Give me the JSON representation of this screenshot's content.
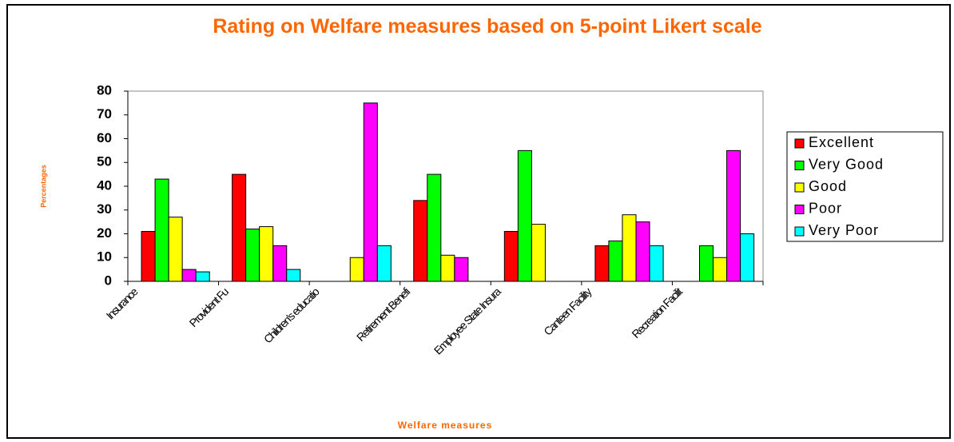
{
  "chart_data": {
    "type": "bar",
    "title": "Rating on Welfare measures based on 5-point Likert scale",
    "x_label": "Welfare measures",
    "y_label": "Percentages",
    "categories": [
      "Insurance",
      "Provident Fu",
      "Children's educatio",
      "Retirement Benefi",
      "Employee State Insura",
      "Canteen Facility",
      "Recreation Facilit"
    ],
    "series": [
      {
        "name": "Excellent",
        "color": "#ff0000",
        "values": [
          21,
          45,
          0,
          34,
          21,
          15,
          0
        ]
      },
      {
        "name": "Very Good",
        "color": "#00ff00",
        "values": [
          43,
          22,
          0,
          45,
          55,
          17,
          15
        ]
      },
      {
        "name": "Good",
        "color": "#ffff00",
        "values": [
          27,
          23,
          10,
          11,
          24,
          28,
          10
        ]
      },
      {
        "name": "Poor",
        "color": "#ff00ff",
        "values": [
          5,
          15,
          75,
          10,
          0,
          25,
          55
        ]
      },
      {
        "name": "Very Poor",
        "color": "#00ffff",
        "values": [
          4,
          5,
          15,
          0,
          0,
          15,
          20
        ]
      }
    ],
    "ylim": [
      0,
      80
    ],
    "yticks": [
      0,
      10,
      20,
      30,
      40,
      50,
      60,
      70,
      80
    ],
    "grid": false,
    "legend": "right"
  }
}
